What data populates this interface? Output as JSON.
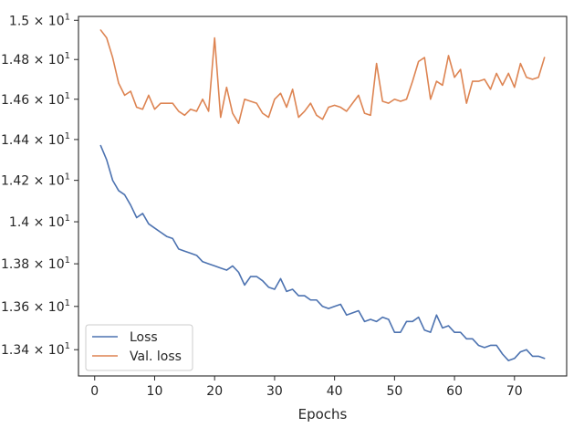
{
  "chart_data": {
    "type": "line",
    "xlabel": "Epochs",
    "ylabel": "",
    "title": "",
    "xlim": [
      -2.7,
      78.7
    ],
    "ylim": [
      13.28,
      15.02
    ],
    "x_ticks": [
      0,
      10,
      20,
      30,
      40,
      50,
      60,
      70
    ],
    "y_ticks": [
      13.4,
      13.6,
      13.8,
      14.0,
      14.2,
      14.4,
      14.6,
      14.8,
      15.0
    ],
    "y_tick_labels": [
      {
        "mant": "1.34",
        "exp": "1"
      },
      {
        "mant": "1.36",
        "exp": "1"
      },
      {
        "mant": "1.38",
        "exp": "1"
      },
      {
        "mant": "1.4",
        "exp": "1"
      },
      {
        "mant": "1.42",
        "exp": "1"
      },
      {
        "mant": "1.44",
        "exp": "1"
      },
      {
        "mant": "1.46",
        "exp": "1"
      },
      {
        "mant": "1.48",
        "exp": "1"
      },
      {
        "mant": "1.5",
        "exp": "1"
      }
    ],
    "y_scale": "log",
    "grid": false,
    "legend_position": "lower-left",
    "x": [
      1,
      2,
      3,
      4,
      5,
      6,
      7,
      8,
      9,
      10,
      11,
      12,
      13,
      14,
      15,
      16,
      17,
      18,
      19,
      20,
      21,
      22,
      23,
      24,
      25,
      26,
      27,
      28,
      29,
      30,
      31,
      32,
      33,
      34,
      35,
      36,
      37,
      38,
      39,
      40,
      41,
      42,
      43,
      44,
      45,
      46,
      47,
      48,
      49,
      50,
      51,
      52,
      53,
      54,
      55,
      56,
      57,
      58,
      59,
      60,
      61,
      62,
      63,
      64,
      65,
      66,
      67,
      68,
      69,
      70,
      71,
      72,
      73,
      74,
      75
    ],
    "series": [
      {
        "name": "Loss",
        "color": "#4c72b0",
        "values": [
          14.37,
          14.3,
          14.2,
          14.15,
          14.13,
          14.08,
          14.02,
          14.04,
          13.99,
          13.97,
          13.95,
          13.93,
          13.92,
          13.87,
          13.86,
          13.85,
          13.84,
          13.81,
          13.8,
          13.79,
          13.78,
          13.77,
          13.79,
          13.76,
          13.7,
          13.74,
          13.74,
          13.72,
          13.69,
          13.68,
          13.73,
          13.67,
          13.68,
          13.65,
          13.65,
          13.63,
          13.63,
          13.6,
          13.59,
          13.6,
          13.61,
          13.56,
          13.57,
          13.58,
          13.53,
          13.54,
          13.53,
          13.55,
          13.54,
          13.48,
          13.48,
          13.53,
          13.53,
          13.55,
          13.49,
          13.48,
          13.56,
          13.5,
          13.51,
          13.48,
          13.48,
          13.45,
          13.45,
          13.42,
          13.41,
          13.42,
          13.42,
          13.38,
          13.35,
          13.36,
          13.39,
          13.4,
          13.37,
          13.37,
          13.36
        ]
      },
      {
        "name": "Val. loss",
        "color": "#dd8452",
        "values": [
          14.95,
          14.91,
          14.81,
          14.68,
          14.62,
          14.64,
          14.56,
          14.55,
          14.62,
          14.55,
          14.58,
          14.58,
          14.58,
          14.54,
          14.52,
          14.55,
          14.54,
          14.6,
          14.54,
          14.91,
          14.51,
          14.66,
          14.53,
          14.48,
          14.6,
          14.59,
          14.58,
          14.53,
          14.51,
          14.6,
          14.63,
          14.56,
          14.65,
          14.51,
          14.54,
          14.58,
          14.52,
          14.5,
          14.56,
          14.57,
          14.56,
          14.54,
          14.58,
          14.62,
          14.53,
          14.52,
          14.78,
          14.59,
          14.58,
          14.6,
          14.59,
          14.6,
          14.69,
          14.79,
          14.81,
          14.6,
          14.69,
          14.67,
          14.82,
          14.71,
          14.75,
          14.58,
          14.69,
          14.69,
          14.7,
          14.65,
          14.73,
          14.67,
          14.73,
          14.66,
          14.78,
          14.71,
          14.7,
          14.71,
          14.81
        ]
      }
    ]
  }
}
